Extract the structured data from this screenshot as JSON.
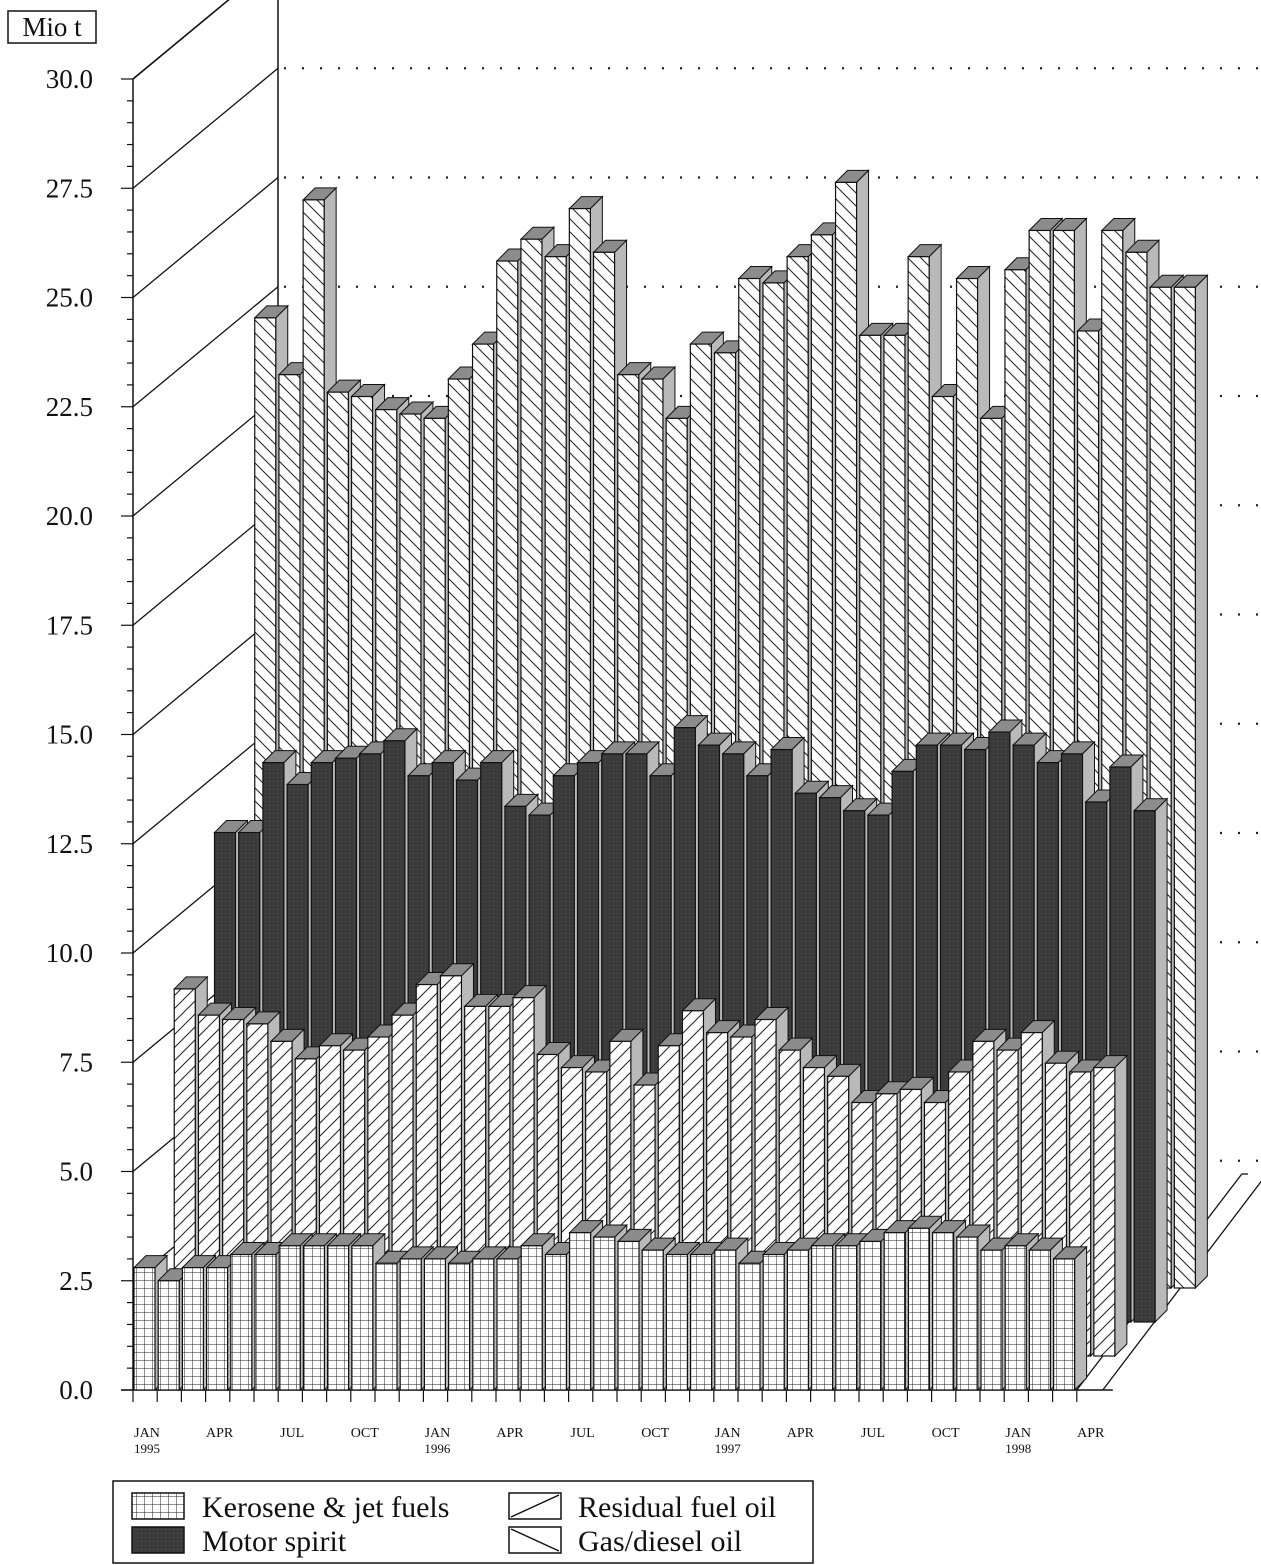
{
  "chart_data": {
    "type": "bar",
    "subtype": "3d-stacked-depth",
    "unit_label": "Mio t",
    "ylim": [
      0,
      30
    ],
    "yticks": [
      "0.0",
      "2.5",
      "5.0",
      "7.5",
      "10.0",
      "12.5",
      "15.0",
      "17.5",
      "20.0",
      "22.5",
      "25.0",
      "27.5",
      "30.0"
    ],
    "grid": "dotted horizontal",
    "x_months": [
      "1995-01",
      "1995-02",
      "1995-03",
      "1995-04",
      "1995-05",
      "1995-06",
      "1995-07",
      "1995-08",
      "1995-09",
      "1995-10",
      "1995-11",
      "1995-12",
      "1996-01",
      "1996-02",
      "1996-03",
      "1996-04",
      "1996-05",
      "1996-06",
      "1996-07",
      "1996-08",
      "1996-09",
      "1996-10",
      "1996-11",
      "1996-12",
      "1997-01",
      "1997-02",
      "1997-03",
      "1997-04",
      "1997-05",
      "1997-06",
      "1997-07",
      "1997-08",
      "1997-09",
      "1997-10",
      "1997-11",
      "1997-12",
      "1998-01",
      "1998-02",
      "1998-03"
    ],
    "x_tick_labels": [
      {
        "index": 0,
        "month": "JAN",
        "year": "1995"
      },
      {
        "index": 3,
        "month": "APR",
        "year": ""
      },
      {
        "index": 6,
        "month": "JUL",
        "year": ""
      },
      {
        "index": 9,
        "month": "OCT",
        "year": ""
      },
      {
        "index": 12,
        "month": "JAN",
        "year": "1996"
      },
      {
        "index": 15,
        "month": "APR",
        "year": ""
      },
      {
        "index": 18,
        "month": "JUL",
        "year": ""
      },
      {
        "index": 21,
        "month": "OCT",
        "year": ""
      },
      {
        "index": 24,
        "month": "JAN",
        "year": "1997"
      },
      {
        "index": 27,
        "month": "APR",
        "year": ""
      },
      {
        "index": 30,
        "month": "JUL",
        "year": ""
      },
      {
        "index": 33,
        "month": "OCT",
        "year": ""
      },
      {
        "index": 36,
        "month": "JAN",
        "year": "1998"
      },
      {
        "index": 39,
        "month": "APR",
        "year": ""
      }
    ],
    "series": [
      {
        "name": "Gas/diesel oil",
        "pattern": "backslash-hatch",
        "values": [
          22.2,
          20.9,
          24.9,
          20.5,
          20.4,
          20.1,
          20.0,
          19.9,
          20.8,
          21.6,
          23.5,
          24.0,
          23.6,
          24.7,
          23.7,
          20.9,
          20.8,
          19.9,
          21.6,
          21.4,
          23.1,
          23.0,
          23.6,
          24.1,
          25.3,
          21.8,
          21.8,
          23.6,
          20.4,
          23.1,
          19.9,
          23.3,
          24.2,
          24.2,
          21.9,
          24.2,
          23.7,
          22.9,
          22.9
        ]
      },
      {
        "name": "Motor spirit",
        "pattern": "dark-gray",
        "values": [
          11.2,
          11.2,
          12.8,
          12.3,
          12.8,
          12.9,
          13.0,
          13.3,
          12.5,
          12.8,
          12.4,
          12.8,
          11.8,
          11.6,
          12.5,
          12.8,
          13.0,
          13.0,
          12.5,
          13.6,
          13.2,
          13.0,
          12.5,
          13.1,
          12.1,
          12.0,
          11.7,
          11.6,
          12.6,
          13.2,
          13.2,
          13.1,
          13.5,
          13.2,
          12.8,
          13.0,
          11.9,
          12.7,
          11.7
        ]
      },
      {
        "name": "Residual fuel oil",
        "pattern": "slash-hatch",
        "values": [
          8.4,
          7.8,
          7.7,
          7.6,
          7.2,
          6.8,
          7.1,
          7.0,
          7.3,
          7.8,
          8.5,
          8.7,
          8.0,
          8.0,
          8.2,
          6.9,
          6.6,
          6.5,
          7.2,
          6.2,
          7.1,
          7.9,
          7.4,
          7.3,
          7.7,
          7.0,
          6.6,
          6.4,
          5.8,
          6.0,
          6.1,
          5.8,
          6.5,
          7.2,
          7.0,
          7.4,
          6.7,
          6.5,
          6.6
        ]
      },
      {
        "name": "Kerosene & jet fuels",
        "pattern": "grid",
        "values": [
          2.8,
          2.5,
          2.8,
          2.8,
          3.1,
          3.1,
          3.3,
          3.3,
          3.3,
          3.3,
          2.9,
          3.0,
          3.0,
          2.9,
          3.0,
          3.0,
          3.3,
          3.1,
          3.6,
          3.5,
          3.4,
          3.2,
          3.1,
          3.1,
          3.2,
          2.9,
          3.1,
          3.2,
          3.3,
          3.3,
          3.4,
          3.6,
          3.7,
          3.6,
          3.5,
          3.2,
          3.3,
          3.2,
          3.0
        ]
      }
    ],
    "legend": {
      "placement": "bottom-left",
      "entries": [
        "Kerosene & jet fuels",
        "Motor spirit",
        "Residual fuel oil",
        "Gas/diesel oil"
      ]
    }
  }
}
